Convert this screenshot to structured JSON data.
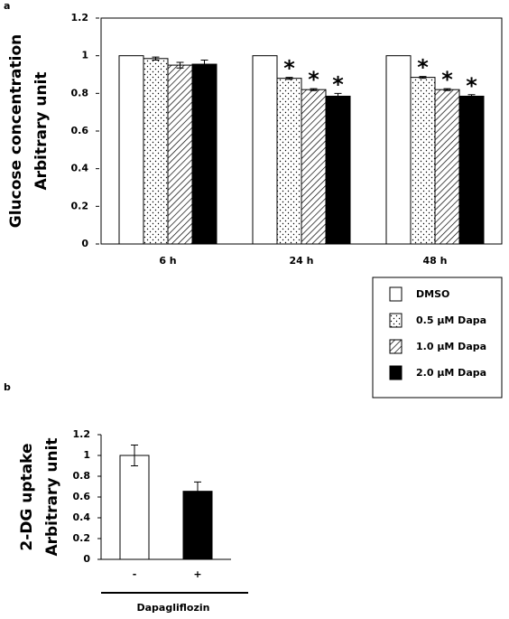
{
  "chart_data": [
    {
      "type": "grouped-bar",
      "panel": "a",
      "ylabel": [
        "Glucose concentration",
        "Arbitrary unit"
      ],
      "categories": [
        "6 h",
        "24 h",
        "48 h"
      ],
      "series": [
        {
          "name": "DMSO",
          "pattern": "solid",
          "color": "#ffffff",
          "values": [
            1,
            1,
            1
          ],
          "errors": [
            0,
            0,
            0
          ],
          "labels": [
            null,
            null,
            null
          ]
        },
        {
          "name": "0.5 μM Dapa",
          "pattern": "dots",
          "color": "#ffffff",
          "values": [
            0.985,
            0.88,
            0.885
          ],
          "errors": [
            0.008,
            0.005,
            0.005
          ],
          "labels": [
            null,
            "*",
            "*"
          ]
        },
        {
          "name": "1.0 μM Dapa",
          "pattern": "hatch",
          "color": "#ffffff",
          "values": [
            0.95,
            0.82,
            0.82
          ],
          "errors": [
            0.015,
            0.005,
            0.005
          ],
          "labels": [
            null,
            "*",
            "*"
          ]
        },
        {
          "name": "2.0 μM Dapa",
          "pattern": "solid",
          "color": "#000000",
          "values": [
            0.955,
            0.785,
            0.785
          ],
          "errors": [
            0.022,
            0.015,
            0.008
          ],
          "labels": [
            null,
            "*",
            "*"
          ]
        }
      ],
      "ylim": [
        0,
        1.2
      ],
      "yticks": [
        0,
        0.2,
        0.4,
        0.6,
        0.8,
        1,
        1.2
      ],
      "frame": true,
      "legend": "below-right"
    },
    {
      "type": "bar",
      "panel": "b",
      "ylabel": [
        "2-DG uptake",
        "Arbitrary unit"
      ],
      "xlabel": "Dapagliflozin",
      "categories": [
        "-",
        "+"
      ],
      "values": [
        1,
        0.655
      ],
      "errors": [
        0.1,
        0.09
      ],
      "colors": [
        "#ffffff",
        "#000000"
      ],
      "ylim": [
        0,
        1.2
      ],
      "yticks": [
        0,
        0.2,
        0.4,
        0.6,
        0.8,
        1,
        1.2
      ],
      "frame": false
    }
  ]
}
